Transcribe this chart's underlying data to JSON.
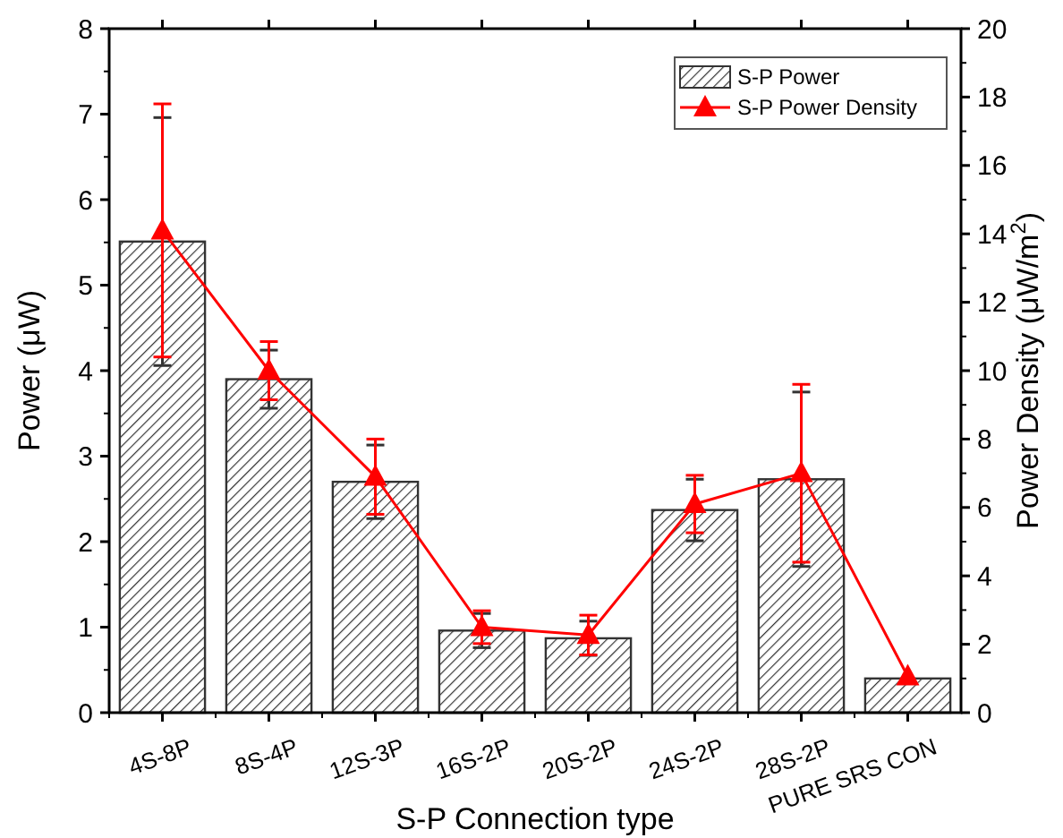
{
  "chart_data": {
    "type": "bar",
    "xlabel": "S-P Connection type",
    "ylabel": "Power (μW)",
    "y2label": "Power Density (μW/m$^{2}$)",
    "categories": [
      "4S-8P",
      "8S-4P",
      "12S-3P",
      "16S-2P",
      "20S-2P",
      "24S-2P",
      "28S-2P",
      "PURE SRS CON"
    ],
    "series": [
      {
        "name": "S-P Power",
        "color": "#333333",
        "values": [
          5.51,
          3.9,
          2.7,
          0.96,
          0.87,
          2.37,
          2.73,
          0.4
        ],
        "errors": [
          1.45,
          0.34,
          0.43,
          0.2,
          0.2,
          0.36,
          1.02,
          null
        ]
      },
      {
        "name": "S-P Power Density",
        "type": "line",
        "axis": "y2",
        "color": "#ff0000",
        "marker": "triangle",
        "values": [
          14.1,
          10.0,
          6.9,
          2.5,
          2.27,
          6.1,
          7.0,
          1.06
        ],
        "errors": [
          3.7,
          0.85,
          1.1,
          0.48,
          0.58,
          0.84,
          2.6,
          null
        ]
      }
    ],
    "ylim": [
      0,
      8
    ],
    "yticks": [
      0,
      1,
      2,
      3,
      4,
      5,
      6,
      7,
      8
    ],
    "y2lim": [
      0,
      20
    ],
    "y2ticks": [
      0,
      2,
      4,
      6,
      8,
      10,
      12,
      14,
      16,
      18,
      20
    ],
    "legend": "top right",
    "grid": false
  }
}
